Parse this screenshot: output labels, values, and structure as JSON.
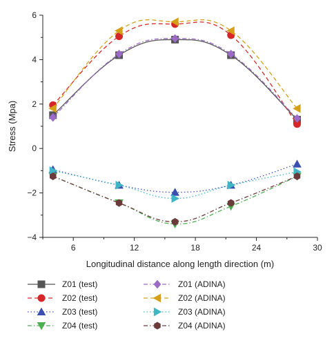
{
  "chart_data": {
    "type": "line",
    "xlabel": "Longitudinal distance along length direction (m)",
    "ylabel": "Stress (Mpa)",
    "xlim": [
      3,
      30
    ],
    "ylim": [
      -4,
      6
    ],
    "xticks": [
      6,
      12,
      18,
      24,
      30
    ],
    "yticks": [
      -4,
      -2,
      0,
      2,
      4,
      6
    ],
    "xtick_labels": [
      "6",
      "12",
      "18",
      "24",
      "30"
    ],
    "ytick_labels": [
      "−4",
      "−2",
      "0",
      "2",
      "4",
      "6"
    ],
    "grid": false,
    "legend_position": "bottom",
    "series": [
      {
        "name": "Z01 (test)",
        "x": [
          4,
          10.5,
          16,
          21.5,
          28
        ],
        "y": [
          1.5,
          4.2,
          4.9,
          4.2,
          1.3
        ],
        "color": "#555555",
        "marker": "square",
        "dash": "solid"
      },
      {
        "name": "Z02 (test)",
        "x": [
          4,
          10.5,
          16,
          21.5,
          28
        ],
        "y": [
          1.95,
          5.05,
          5.6,
          5.1,
          1.1
        ],
        "color": "#d62728",
        "marker": "circle",
        "dash": "dashed"
      },
      {
        "name": "Z03 (test)",
        "x": [
          4,
          10.5,
          16,
          21.5,
          28
        ],
        "y": [
          -0.95,
          -1.65,
          -1.97,
          -1.65,
          -0.7
        ],
        "color": "#3a4fb0",
        "marker": "triangle-up",
        "dash": "dotted"
      },
      {
        "name": "Z04 (test)",
        "x": [
          4,
          10.5,
          16,
          21.5,
          28
        ],
        "y": [
          -1.25,
          -2.45,
          -3.4,
          -2.6,
          -1.25
        ],
        "color": "#4caf50",
        "marker": "triangle-down",
        "dash": "dashdot"
      },
      {
        "name": "Z01 (ADINA)",
        "x": [
          4,
          10.5,
          16,
          21.5,
          28
        ],
        "y": [
          1.4,
          4.25,
          4.95,
          4.25,
          1.35
        ],
        "color": "#9b6bc7",
        "marker": "diamond",
        "dash": "dashdot"
      },
      {
        "name": "Z02 (ADINA)",
        "x": [
          4,
          10.5,
          16,
          21.5,
          28
        ],
        "y": [
          1.8,
          5.3,
          5.7,
          5.3,
          1.8
        ],
        "color": "#d4a017",
        "marker": "triangle-left",
        "dash": "dashed"
      },
      {
        "name": "Z03 (ADINA)",
        "x": [
          4,
          10.5,
          16,
          21.5,
          28
        ],
        "y": [
          -1.0,
          -1.65,
          -2.25,
          -1.65,
          -1.05
        ],
        "color": "#3fb6c6",
        "marker": "triangle-right",
        "dash": "dotted"
      },
      {
        "name": "Z04 (ADINA)",
        "x": [
          4,
          10.5,
          16,
          21.5,
          28
        ],
        "y": [
          -1.25,
          -2.45,
          -3.3,
          -2.45,
          -1.25
        ],
        "color": "#6b3b3b",
        "marker": "hexagon",
        "dash": "dashdot"
      }
    ]
  }
}
